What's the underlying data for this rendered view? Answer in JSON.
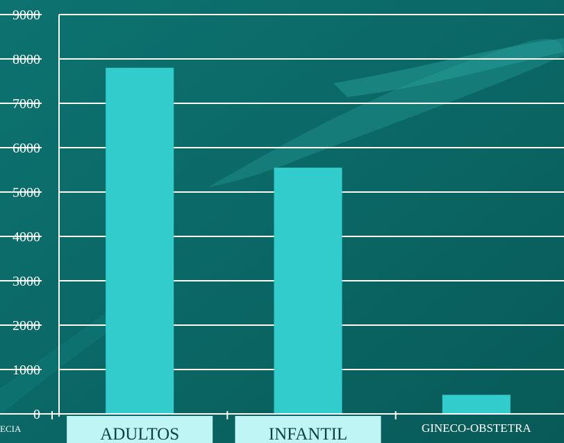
{
  "chart_data": {
    "type": "bar",
    "categories": [
      "ADULTOS",
      "INFANTIL",
      "GINECO-OBSTETRA"
    ],
    "values": [
      7800,
      5550,
      430
    ],
    "ylim": [
      0,
      9000
    ],
    "yticks": [
      0,
      1000,
      2000,
      3000,
      4000,
      5000,
      6000,
      7000,
      8000,
      9000
    ],
    "grid": true,
    "legend": "none",
    "truncated_left_label": "ECIA",
    "colors": {
      "bar": "#33cccc",
      "background": "#0b6a68",
      "grid": "#ffffff",
      "category_box": "#bff5f5"
    }
  }
}
